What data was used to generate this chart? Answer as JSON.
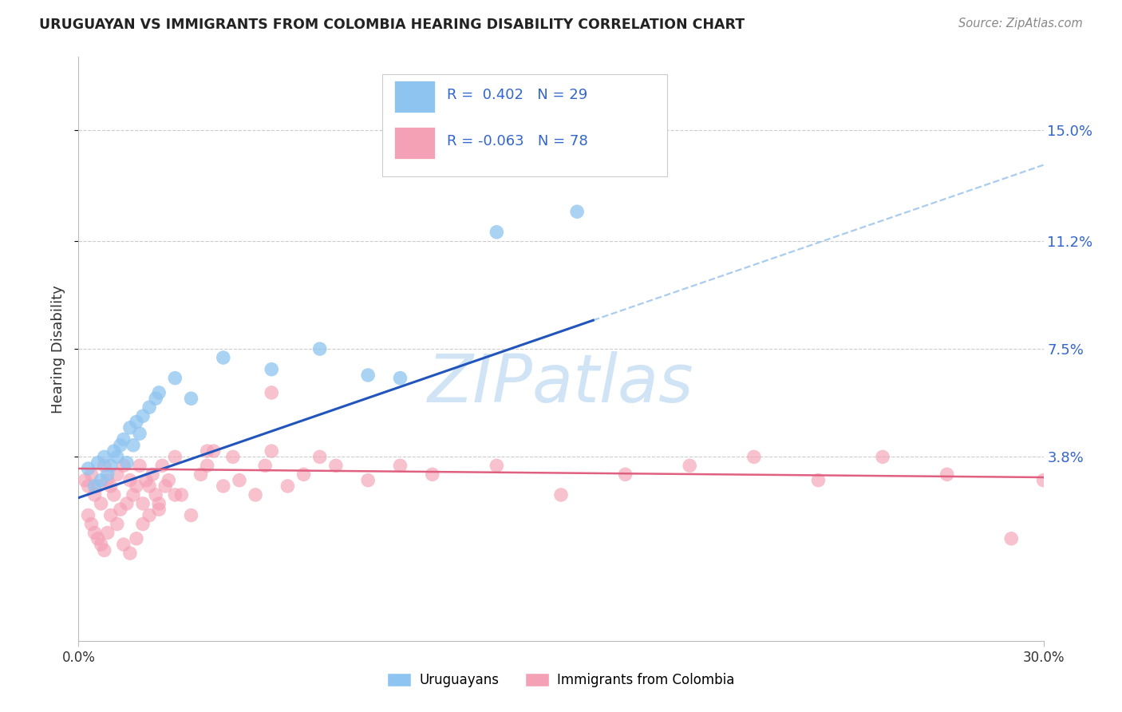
{
  "title": "URUGUAYAN VS IMMIGRANTS FROM COLOMBIA HEARING DISABILITY CORRELATION CHART",
  "source": "Source: ZipAtlas.com",
  "ylabel": "Hearing Disability",
  "ytick_labels": [
    "15.0%",
    "11.2%",
    "7.5%",
    "3.8%"
  ],
  "ytick_values": [
    0.15,
    0.112,
    0.075,
    0.038
  ],
  "xlim": [
    0.0,
    0.3
  ],
  "ylim": [
    -0.025,
    0.175
  ],
  "legend1_label": "Uruguayans",
  "legend2_label": "Immigrants from Colombia",
  "R1": 0.402,
  "N1": 29,
  "R2": -0.063,
  "N2": 78,
  "uruguayan_color": "#8EC4F0",
  "colombia_color": "#F4A0B5",
  "trendline1_color": "#2255BB",
  "trendline2_color": "#E06080",
  "dashed_color": "#AACCEE",
  "watermark_color": "#D0E4F5",
  "uruguayan_x": [
    0.003,
    0.005,
    0.006,
    0.007,
    0.008,
    0.009,
    0.01,
    0.011,
    0.012,
    0.013,
    0.014,
    0.015,
    0.016,
    0.017,
    0.018,
    0.019,
    0.02,
    0.022,
    0.024,
    0.025,
    0.03,
    0.035,
    0.045,
    0.06,
    0.075,
    0.09,
    0.1,
    0.13,
    0.155
  ],
  "uruguayan_y": [
    0.034,
    0.028,
    0.036,
    0.03,
    0.038,
    0.032,
    0.035,
    0.04,
    0.038,
    0.042,
    0.044,
    0.036,
    0.048,
    0.042,
    0.05,
    0.046,
    0.052,
    0.055,
    0.058,
    0.06,
    0.065,
    0.058,
    0.072,
    0.068,
    0.075,
    0.066,
    0.065,
    0.115,
    0.122
  ],
  "colombia_x": [
    0.002,
    0.003,
    0.004,
    0.005,
    0.006,
    0.007,
    0.008,
    0.009,
    0.01,
    0.011,
    0.012,
    0.013,
    0.014,
    0.015,
    0.016,
    0.017,
    0.018,
    0.019,
    0.02,
    0.021,
    0.022,
    0.023,
    0.024,
    0.025,
    0.026,
    0.027,
    0.028,
    0.03,
    0.032,
    0.035,
    0.038,
    0.04,
    0.042,
    0.045,
    0.048,
    0.05,
    0.055,
    0.058,
    0.06,
    0.065,
    0.07,
    0.075,
    0.08,
    0.09,
    0.1,
    0.11,
    0.13,
    0.15,
    0.17,
    0.19,
    0.21,
    0.23,
    0.25,
    0.27,
    0.29,
    0.3,
    0.003,
    0.004,
    0.005,
    0.006,
    0.007,
    0.008,
    0.009,
    0.01,
    0.012,
    0.014,
    0.016,
    0.018,
    0.02,
    0.022,
    0.025,
    0.03,
    0.04,
    0.06
  ],
  "colombia_y": [
    0.03,
    0.028,
    0.032,
    0.025,
    0.028,
    0.022,
    0.035,
    0.03,
    0.028,
    0.025,
    0.032,
    0.02,
    0.035,
    0.022,
    0.03,
    0.025,
    0.028,
    0.035,
    0.022,
    0.03,
    0.028,
    0.032,
    0.025,
    0.022,
    0.035,
    0.028,
    0.03,
    0.038,
    0.025,
    0.018,
    0.032,
    0.035,
    0.04,
    0.028,
    0.038,
    0.03,
    0.025,
    0.035,
    0.04,
    0.028,
    0.032,
    0.038,
    0.035,
    0.03,
    0.035,
    0.032,
    0.035,
    0.025,
    0.032,
    0.035,
    0.038,
    0.03,
    0.038,
    0.032,
    0.01,
    0.03,
    0.018,
    0.015,
    0.012,
    0.01,
    0.008,
    0.006,
    0.012,
    0.018,
    0.015,
    0.008,
    0.005,
    0.01,
    0.015,
    0.018,
    0.02,
    0.025,
    0.04,
    0.06
  ]
}
